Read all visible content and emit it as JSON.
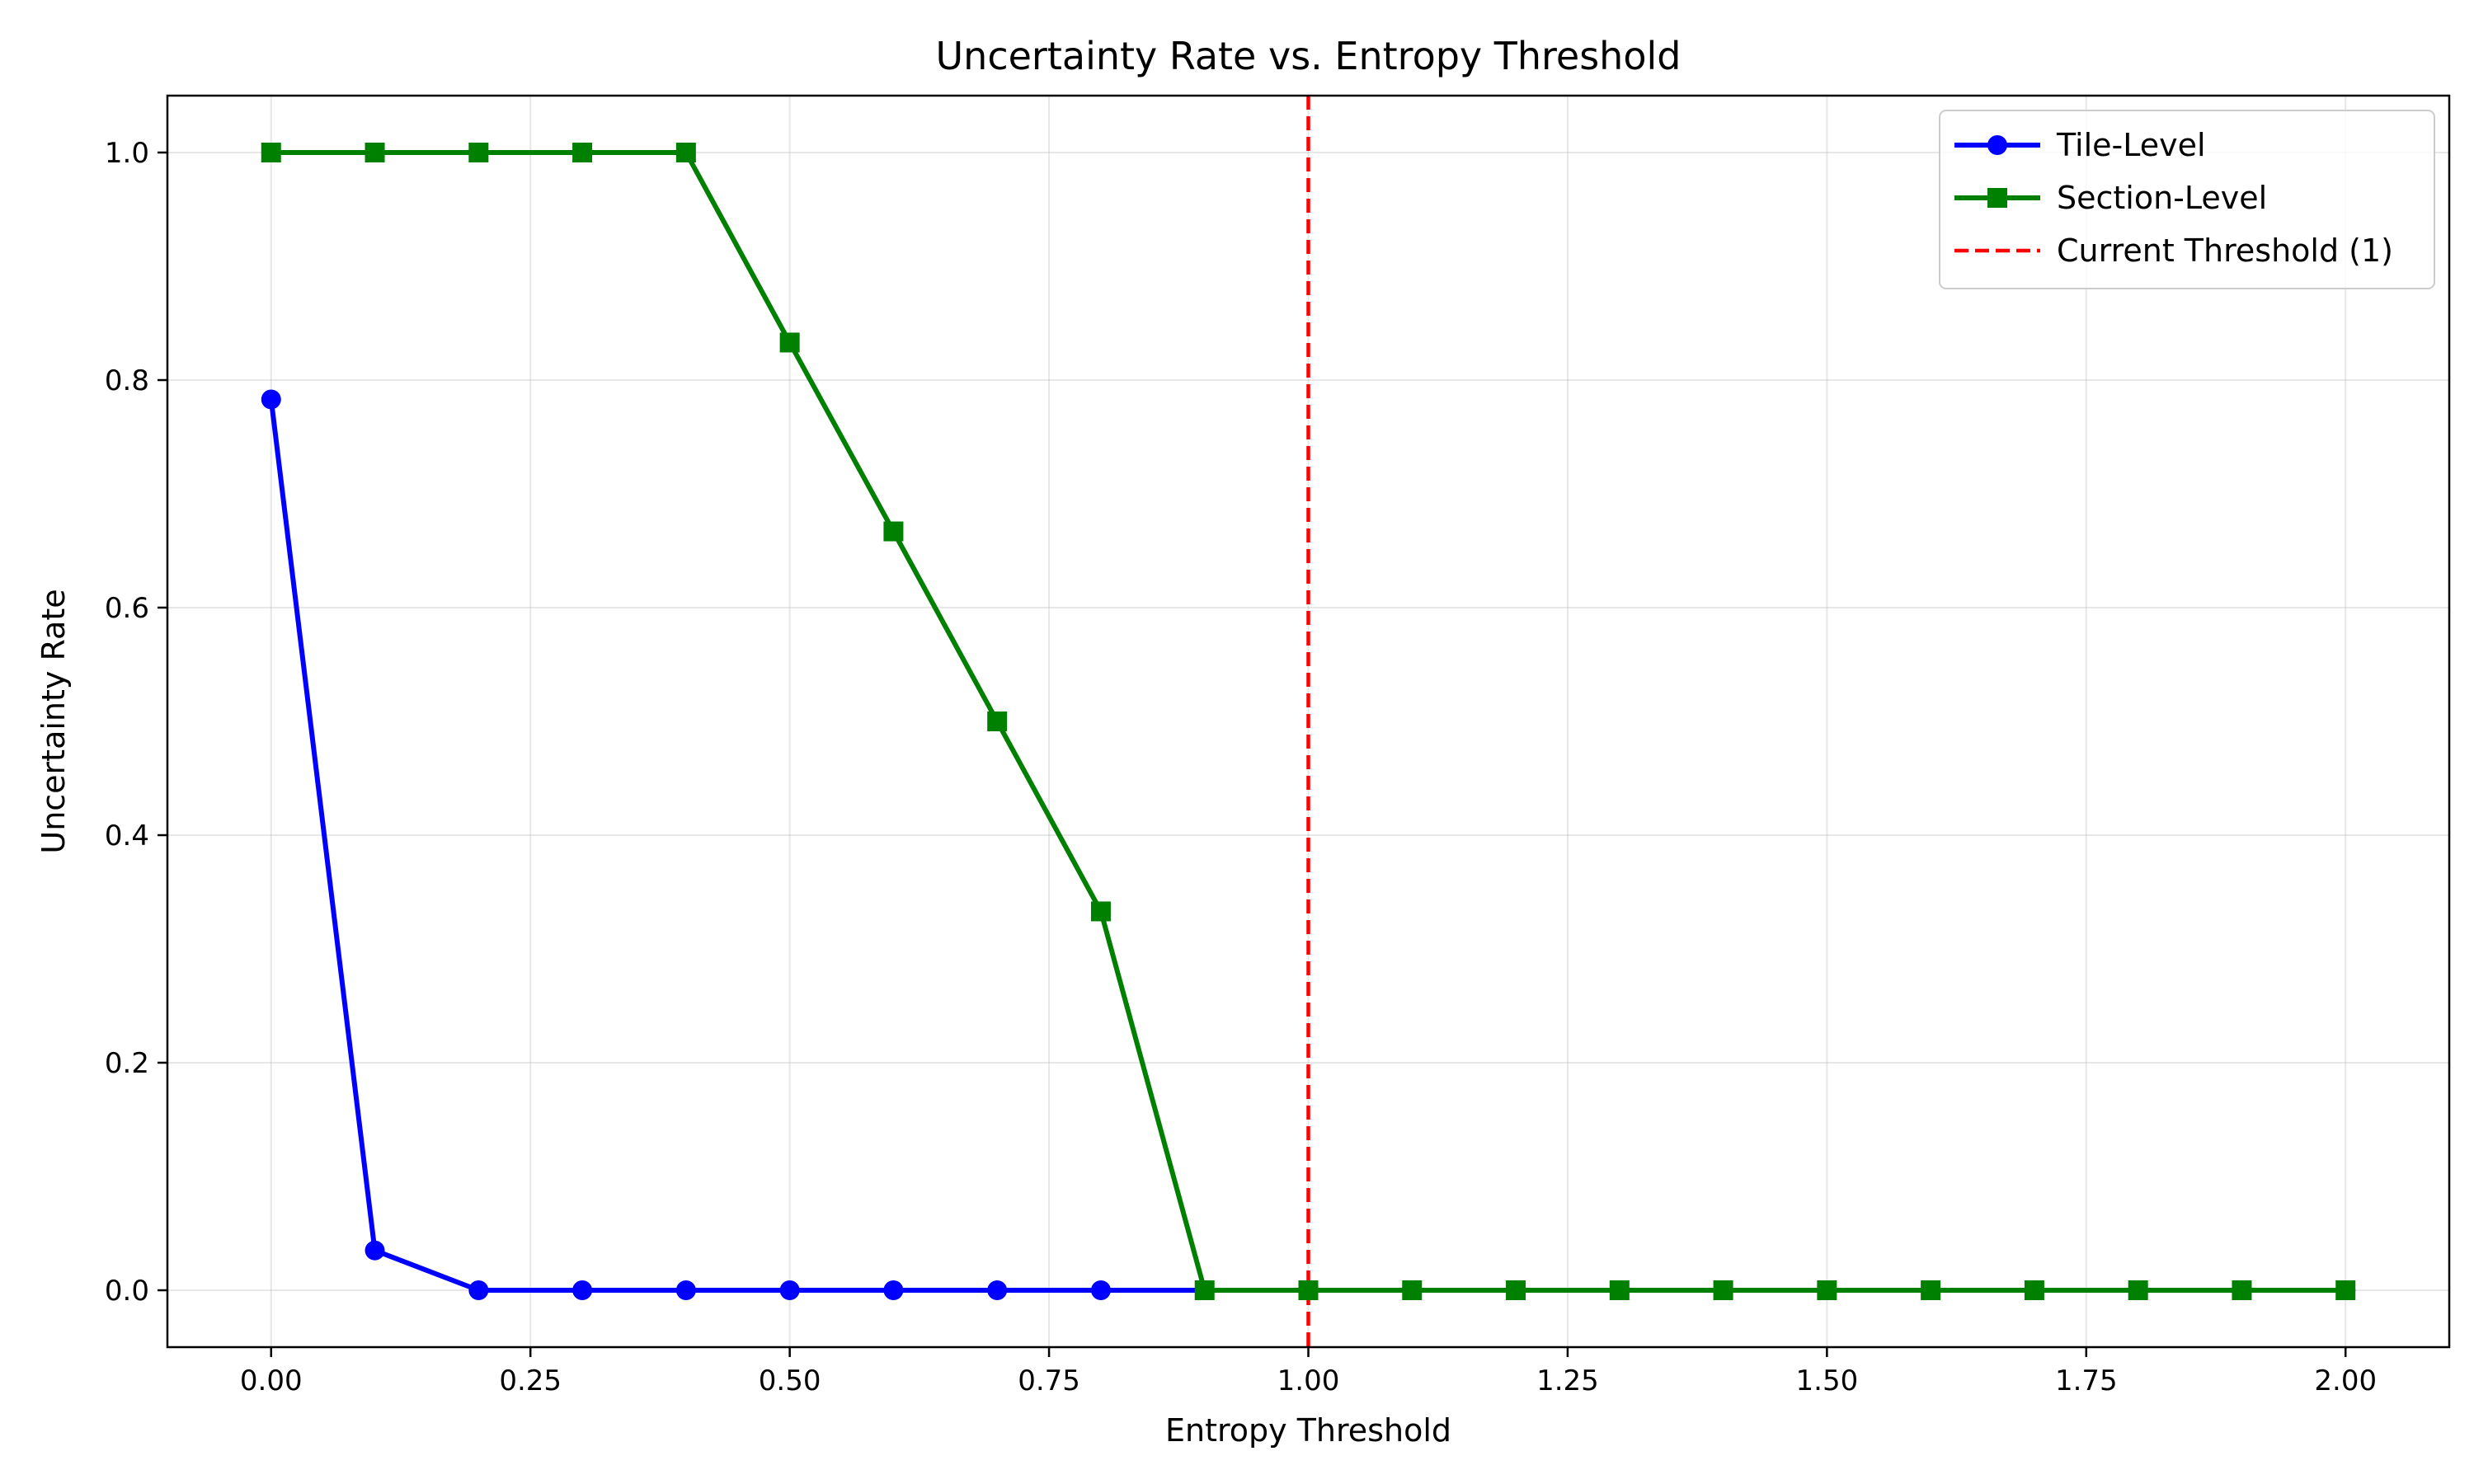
{
  "chart_data": {
    "type": "line",
    "title": "Uncertainty Rate vs. Entropy Threshold",
    "xlabel": "Entropy Threshold",
    "ylabel": "Uncertainty Rate",
    "xlim": [
      -0.1,
      2.1
    ],
    "ylim": [
      -0.05,
      1.05
    ],
    "xticks": [
      0.0,
      0.25,
      0.5,
      0.75,
      1.0,
      1.25,
      1.5,
      1.75,
      2.0
    ],
    "xtick_labels": [
      "0.00",
      "0.25",
      "0.50",
      "0.75",
      "1.00",
      "1.25",
      "1.50",
      "1.75",
      "2.00"
    ],
    "yticks": [
      0.0,
      0.2,
      0.4,
      0.6,
      0.8,
      1.0
    ],
    "ytick_labels": [
      "0.0",
      "0.2",
      "0.4",
      "0.6",
      "0.8",
      "1.0"
    ],
    "grid": true,
    "legend_position": "top-right",
    "x": [
      0.0,
      0.1,
      0.2,
      0.3,
      0.4,
      0.5,
      0.6,
      0.7,
      0.8,
      0.9,
      1.0,
      1.1,
      1.2,
      1.3,
      1.4,
      1.5,
      1.6,
      1.7,
      1.8,
      1.9,
      2.0
    ],
    "series": [
      {
        "name": "Tile-Level",
        "color": "#0000ff",
        "marker": "circle",
        "values": [
          0.783,
          0.035,
          0.0,
          0.0,
          0.0,
          0.0,
          0.0,
          0.0,
          0.0,
          0.0,
          0.0,
          0.0,
          0.0,
          0.0,
          0.0,
          0.0,
          0.0,
          0.0,
          0.0,
          0.0,
          0.0
        ]
      },
      {
        "name": "Section-Level",
        "color": "#008000",
        "marker": "square",
        "values": [
          1.0,
          1.0,
          1.0,
          1.0,
          1.0,
          0.833,
          0.667,
          0.5,
          0.333,
          0.0,
          0.0,
          0.0,
          0.0,
          0.0,
          0.0,
          0.0,
          0.0,
          0.0,
          0.0,
          0.0,
          0.0
        ]
      }
    ],
    "reference_lines": [
      {
        "name": "Current Threshold (1)",
        "x": 1.0,
        "color": "#ff0000",
        "style": "dashed"
      }
    ]
  }
}
